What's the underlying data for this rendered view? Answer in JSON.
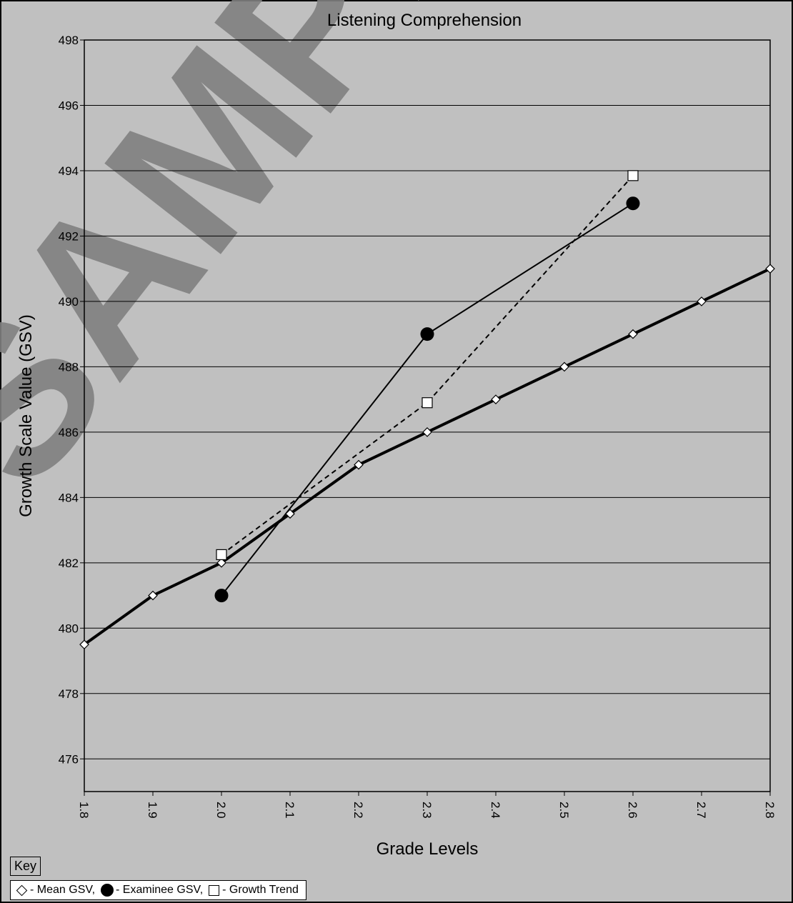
{
  "chart_data": {
    "type": "line",
    "title": "Listening Comprehension",
    "xlabel": "Grade Levels",
    "ylabel": "Growth Scale Value (GSV)",
    "xlim": [
      1.8,
      2.8
    ],
    "ylim": [
      475,
      498
    ],
    "x_ticks": [
      "1.8",
      "1.9",
      "2.0",
      "2.1",
      "2.2",
      "2.3",
      "2.4",
      "2.5",
      "2.6",
      "2.7",
      "2.8"
    ],
    "y_ticks": [
      476,
      478,
      480,
      482,
      484,
      486,
      488,
      490,
      492,
      494,
      496,
      498
    ],
    "grid": "horizontal",
    "watermark": "SAMPLE",
    "series": [
      {
        "name": "Mean GSV",
        "marker": "diamond",
        "line": "thick",
        "color": "#000000",
        "x": [
          1.8,
          1.9,
          2.0,
          2.1,
          2.2,
          2.3,
          2.4,
          2.5,
          2.6,
          2.7,
          2.8
        ],
        "y": [
          479.5,
          481,
          482,
          483.5,
          485,
          486,
          487,
          488,
          489,
          490,
          491
        ]
      },
      {
        "name": "Examinee GSV",
        "marker": "filled-circle",
        "line": "solid",
        "color": "#000000",
        "x": [
          2.0,
          2.3,
          2.6
        ],
        "y": [
          481,
          489,
          493
        ]
      },
      {
        "name": "Growth Trend",
        "marker": "square",
        "line": "dashed",
        "color": "#000000",
        "x": [
          2.0,
          2.3,
          2.6
        ],
        "y": [
          482.25,
          486.9,
          493.85
        ]
      }
    ]
  },
  "key": {
    "title": "Key",
    "items": [
      {
        "icon": "diamond-icon",
        "label": "- Mean GSV,"
      },
      {
        "icon": "filled-circle-icon",
        "label": "- Examinee GSV,"
      },
      {
        "icon": "square-icon",
        "label": "- Growth Trend"
      }
    ]
  }
}
